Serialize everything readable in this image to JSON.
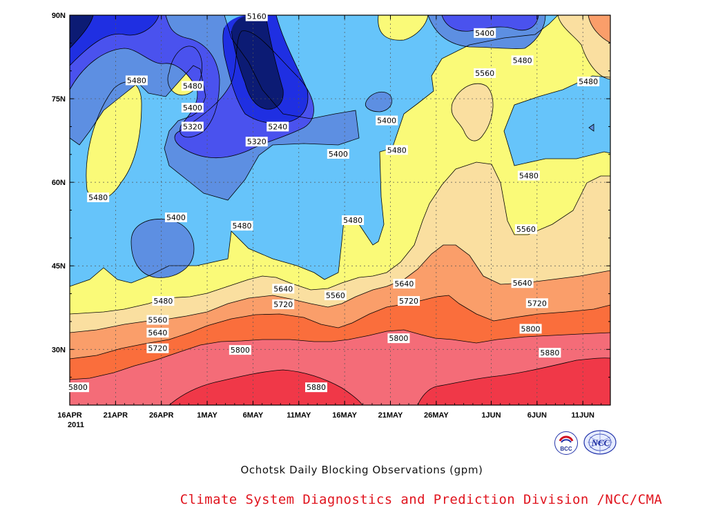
{
  "chart_data": {
    "type": "heatmap",
    "subtype": "filled contour (Hovmoller, latitude vs time)",
    "title": "Ochotsk Daily Blocking Observations (gpm)",
    "footer": "Climate System Diagnostics and Prediction Division /NCC/CMA",
    "x_axis": {
      "ticks": [
        "16APR",
        "21APR",
        "26APR",
        "1MAY",
        "6MAY",
        "11MAY",
        "16MAY",
        "21MAY",
        "26MAY",
        "1JUN",
        "6JUN",
        "11JUN"
      ],
      "tick_days": [
        0,
        5,
        10,
        15,
        20,
        25,
        30,
        35,
        40,
        46,
        51,
        56
      ],
      "year_label": "2011",
      "range": [
        "2011-04-16",
        "2011-06-14"
      ]
    },
    "y_axis": {
      "ticks": [
        "30N",
        "45N",
        "60N",
        "75N",
        "90N"
      ],
      "tick_values": [
        30,
        45,
        60,
        75,
        90
      ],
      "range": [
        20,
        90
      ]
    },
    "grid": true,
    "levels": [
      5160,
      5240,
      5320,
      5400,
      5480,
      5560,
      5640,
      5720,
      5800,
      5880
    ],
    "level_colors": {
      "below_5160": "#0c1b74",
      "5160_5240": "#1f2fe2",
      "5240_5320": "#4a52ee",
      "5320_5400": "#5d8fe2",
      "5400_5480": "#66c4fa",
      "5480_5560": "#fafa78",
      "5560_5640": "#fadfa0",
      "5640_5720": "#fa9e6a",
      "5720_5800": "#fa6e3c",
      "5800_5880": "#f46c78",
      "above_5880": "#f03848"
    },
    "contour_labels": [
      {
        "value": "5160",
        "x": 20.4,
        "y": 89.8
      },
      {
        "value": "5480",
        "x": 7.3,
        "y": 78.3
      },
      {
        "value": "5480",
        "x": 13.4,
        "y": 77.3
      },
      {
        "value": "5400",
        "x": 13.4,
        "y": 73.4
      },
      {
        "value": "5320",
        "x": 13.4,
        "y": 70.0
      },
      {
        "value": "5240",
        "x": 22.7,
        "y": 70.0
      },
      {
        "value": "5320",
        "x": 20.4,
        "y": 67.3
      },
      {
        "value": "5400",
        "x": 29.3,
        "y": 65.1
      },
      {
        "value": "5400",
        "x": 34.6,
        "y": 71.1
      },
      {
        "value": "5480",
        "x": 35.7,
        "y": 65.8
      },
      {
        "value": "5480",
        "x": 3.1,
        "y": 57.3
      },
      {
        "value": "5400",
        "x": 11.6,
        "y": 53.7
      },
      {
        "value": "5480",
        "x": 18.8,
        "y": 52.2
      },
      {
        "value": "5480",
        "x": 30.9,
        "y": 53.2
      },
      {
        "value": "5400",
        "x": 45.3,
        "y": 86.8
      },
      {
        "value": "5480",
        "x": 49.4,
        "y": 81.9
      },
      {
        "value": "5560",
        "x": 45.3,
        "y": 79.6
      },
      {
        "value": "5480",
        "x": 56.6,
        "y": 78.1
      },
      {
        "value": "5480",
        "x": 50.1,
        "y": 61.2
      },
      {
        "value": "5560",
        "x": 49.8,
        "y": 51.6
      },
      {
        "value": "5640",
        "x": 49.4,
        "y": 41.9
      },
      {
        "value": "5720",
        "x": 51.0,
        "y": 38.3
      },
      {
        "value": "5800",
        "x": 50.3,
        "y": 33.7
      },
      {
        "value": "5880",
        "x": 52.4,
        "y": 29.4
      },
      {
        "value": "5480",
        "x": 10.2,
        "y": 38.7
      },
      {
        "value": "5560",
        "x": 9.6,
        "y": 35.3
      },
      {
        "value": "5640",
        "x": 9.6,
        "y": 33.0
      },
      {
        "value": "5720",
        "x": 9.6,
        "y": 30.2
      },
      {
        "value": "5800",
        "x": 0.9,
        "y": 23.2
      },
      {
        "value": "5640",
        "x": 23.3,
        "y": 40.9
      },
      {
        "value": "5720",
        "x": 23.3,
        "y": 38.1
      },
      {
        "value": "5800",
        "x": 18.6,
        "y": 29.9
      },
      {
        "value": "5880",
        "x": 26.9,
        "y": 23.2
      },
      {
        "value": "5560",
        "x": 29.0,
        "y": 39.7
      },
      {
        "value": "5640",
        "x": 36.5,
        "y": 41.8
      },
      {
        "value": "5720",
        "x": 37.0,
        "y": 38.7
      },
      {
        "value": "5800",
        "x": 35.9,
        "y": 32.0
      }
    ]
  },
  "logos": {
    "bcc": {
      "icon": "bcc-logo-icon",
      "text": "BCC"
    },
    "ncc": {
      "icon": "ncc-logo-icon",
      "text": "NCC"
    }
  }
}
